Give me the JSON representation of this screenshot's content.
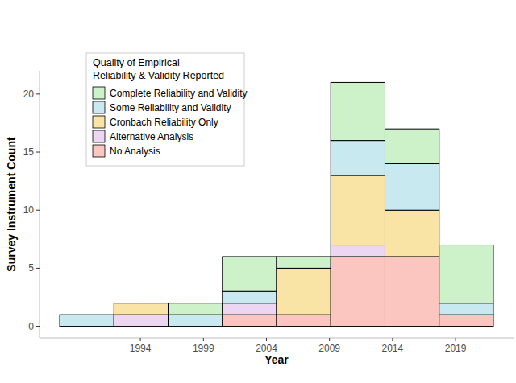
{
  "chart_data": {
    "type": "histogram",
    "x_label": "Year",
    "y_label": "Survey Instrument Count",
    "legend_title": "Quality of Empirical\nReliability & Validity Reported",
    "legend": "top-left",
    "stacked": true,
    "grid": false,
    "bins": [
      1987.6,
      1991.9,
      1996.2,
      2000.5,
      2004.8,
      2009.1,
      2013.4,
      2017.7,
      2022.0
    ],
    "xlim": [
      1986,
      2023.6
    ],
    "xticks": [
      1994,
      1999,
      2004,
      2009,
      2014,
      2019
    ],
    "ylim": [
      -1,
      22
    ],
    "yticks": [
      0,
      5,
      10,
      15,
      20
    ],
    "series": [
      {
        "name": "No Analysis",
        "color": "#fcc6c0",
        "values": [
          0,
          0,
          0,
          1,
          1,
          6,
          6,
          1
        ]
      },
      {
        "name": "Alternative Analysis",
        "color": "#ecd6f2",
        "values": [
          0,
          1,
          0,
          1,
          0,
          1,
          0,
          0
        ]
      },
      {
        "name": "Cronbach Reliability Only",
        "color": "#f9e4a6",
        "values": [
          0,
          1,
          0,
          0,
          4,
          6,
          4,
          0
        ]
      },
      {
        "name": "Some Reliability and Validity",
        "color": "#c8e9f0",
        "values": [
          1,
          0,
          1,
          1,
          0,
          3,
          4,
          1
        ]
      },
      {
        "name": "Complete Reliability and Validity",
        "color": "#cdf1c9",
        "values": [
          0,
          0,
          1,
          3,
          1,
          5,
          3,
          5
        ]
      }
    ]
  }
}
